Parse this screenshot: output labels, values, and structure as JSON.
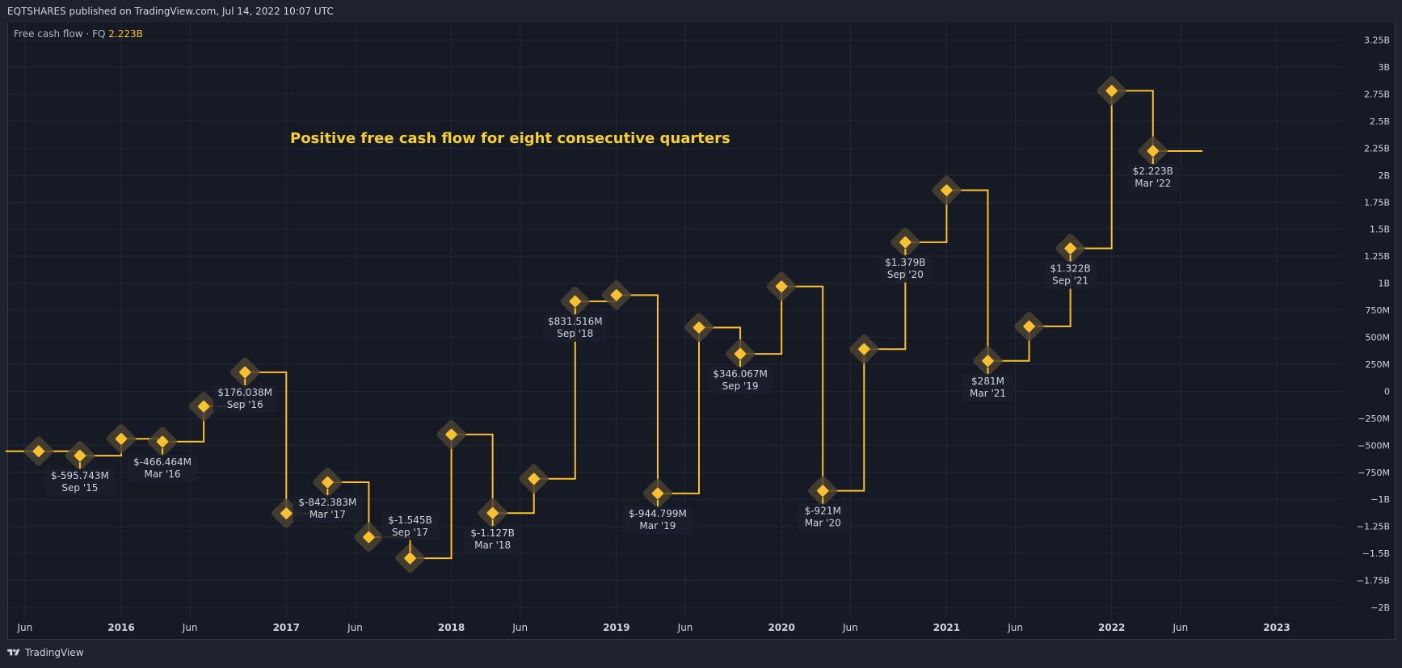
{
  "header": {
    "publisher_line": "EQTSHARES published on TradingView.com, Jul 14, 2022 10:07 UTC"
  },
  "footer": {
    "brand": "TradingView",
    "logo_icon": "tradingview-logo-icon"
  },
  "colors": {
    "line": "#fbc02d",
    "marker_halo": "#4a4232",
    "label_bg": "#1b1f2b",
    "label_text": "#d1d4dc",
    "grid": "#232735",
    "axis_text": "#d1d4dc",
    "annotation": "#f7d02c"
  },
  "chart_data": {
    "type": "line",
    "step": true,
    "legend": {
      "name": "Free cash flow",
      "separator": " · ",
      "period": "FQ",
      "value": "2.223B"
    },
    "annotation": "Positive free cash flow for eight consecutive quarters",
    "ylim": [
      -2.05,
      3.35
    ],
    "yticks": [
      {
        "v": 3.25,
        "label": "3.25B"
      },
      {
        "v": 3,
        "label": "3B"
      },
      {
        "v": 2.75,
        "label": "2.75B"
      },
      {
        "v": 2.5,
        "label": "2.5B"
      },
      {
        "v": 2.25,
        "label": "2.25B"
      },
      {
        "v": 2,
        "label": "2B"
      },
      {
        "v": 1.75,
        "label": "1.75B"
      },
      {
        "v": 1.5,
        "label": "1.5B"
      },
      {
        "v": 1.25,
        "label": "1.25B"
      },
      {
        "v": 1,
        "label": "1B"
      },
      {
        "v": 0.75,
        "label": "750M"
      },
      {
        "v": 0.5,
        "label": "500M"
      },
      {
        "v": 0.25,
        "label": "250M"
      },
      {
        "v": 0,
        "label": "0"
      },
      {
        "v": -0.25,
        "label": "−250M"
      },
      {
        "v": -0.5,
        "label": "−500M"
      },
      {
        "v": -0.75,
        "label": "−750M"
      },
      {
        "v": -1,
        "label": "−1B"
      },
      {
        "v": -1.25,
        "label": "−1.25B"
      },
      {
        "v": -1.5,
        "label": "−1.5B"
      },
      {
        "v": -1.75,
        "label": "−1.75B"
      },
      {
        "v": -2,
        "label": "−2B"
      }
    ],
    "xticks": [
      {
        "t": 2015.417,
        "label": "Jun",
        "bold": false
      },
      {
        "t": 2016.0,
        "label": "2016",
        "bold": true
      },
      {
        "t": 2016.417,
        "label": "Jun",
        "bold": false
      },
      {
        "t": 2017.0,
        "label": "2017",
        "bold": true
      },
      {
        "t": 2017.417,
        "label": "Jun",
        "bold": false
      },
      {
        "t": 2018.0,
        "label": "2018",
        "bold": true
      },
      {
        "t": 2018.417,
        "label": "Jun",
        "bold": false
      },
      {
        "t": 2019.0,
        "label": "2019",
        "bold": true
      },
      {
        "t": 2019.417,
        "label": "Jun",
        "bold": false
      },
      {
        "t": 2020.0,
        "label": "2020",
        "bold": true
      },
      {
        "t": 2020.417,
        "label": "Jun",
        "bold": false
      },
      {
        "t": 2021.0,
        "label": "2021",
        "bold": true
      },
      {
        "t": 2021.417,
        "label": "Jun",
        "bold": false
      },
      {
        "t": 2022.0,
        "label": "2022",
        "bold": true
      },
      {
        "t": 2022.417,
        "label": "Jun",
        "bold": false
      },
      {
        "t": 2023.0,
        "label": "2023",
        "bold": true
      }
    ],
    "xlim": [
      2015.3,
      2023.45
    ],
    "line_start": 2015.3,
    "line_end": 2022.55,
    "points": [
      {
        "t": 2015.5,
        "v": -0.555
      },
      {
        "t": 2015.75,
        "v": -0.596,
        "label": "$-595.743M",
        "date": "Sep '15",
        "pos": "below"
      },
      {
        "t": 2016.0,
        "v": -0.44
      },
      {
        "t": 2016.25,
        "v": -0.466,
        "label": "$-466.464M",
        "date": "Mar '16",
        "pos": "below"
      },
      {
        "t": 2016.5,
        "v": -0.14
      },
      {
        "t": 2016.75,
        "v": 0.176,
        "label": "$176.038M",
        "date": "Sep '16",
        "pos": "below"
      },
      {
        "t": 2017.0,
        "v": -1.13
      },
      {
        "t": 2017.25,
        "v": -0.842,
        "label": "$-842.383M",
        "date": "Mar '17",
        "pos": "below"
      },
      {
        "t": 2017.5,
        "v": -1.35
      },
      {
        "t": 2017.75,
        "v": -1.545,
        "label": "$-1.545B",
        "date": "Sep '17",
        "pos": "above"
      },
      {
        "t": 2018.0,
        "v": -0.4
      },
      {
        "t": 2018.25,
        "v": -1.127,
        "label": "$-1.127B",
        "date": "Mar '18",
        "pos": "below"
      },
      {
        "t": 2018.5,
        "v": -0.81
      },
      {
        "t": 2018.75,
        "v": 0.832,
        "label": "$831.516M",
        "date": "Sep '18",
        "pos": "below"
      },
      {
        "t": 2019.0,
        "v": 0.89
      },
      {
        "t": 2019.25,
        "v": -0.945,
        "label": "$-944.799M",
        "date": "Mar '19",
        "pos": "below"
      },
      {
        "t": 2019.5,
        "v": 0.59
      },
      {
        "t": 2019.75,
        "v": 0.346,
        "label": "$346.067M",
        "date": "Sep '19",
        "pos": "below"
      },
      {
        "t": 2020.0,
        "v": 0.97
      },
      {
        "t": 2020.25,
        "v": -0.921,
        "label": "$-921M",
        "date": "Mar '20",
        "pos": "below"
      },
      {
        "t": 2020.5,
        "v": 0.39
      },
      {
        "t": 2020.75,
        "v": 1.379,
        "label": "$1.379B",
        "date": "Sep '20",
        "pos": "below"
      },
      {
        "t": 2021.0,
        "v": 1.86
      },
      {
        "t": 2021.25,
        "v": 0.281,
        "label": "$281M",
        "date": "Mar '21",
        "pos": "below"
      },
      {
        "t": 2021.5,
        "v": 0.6
      },
      {
        "t": 2021.75,
        "v": 1.322,
        "label": "$1.322B",
        "date": "Sep '21",
        "pos": "below"
      },
      {
        "t": 2022.0,
        "v": 2.78
      },
      {
        "t": 2022.25,
        "v": 2.223,
        "label": "$2.223B",
        "date": "Mar '22",
        "pos": "below"
      }
    ]
  }
}
